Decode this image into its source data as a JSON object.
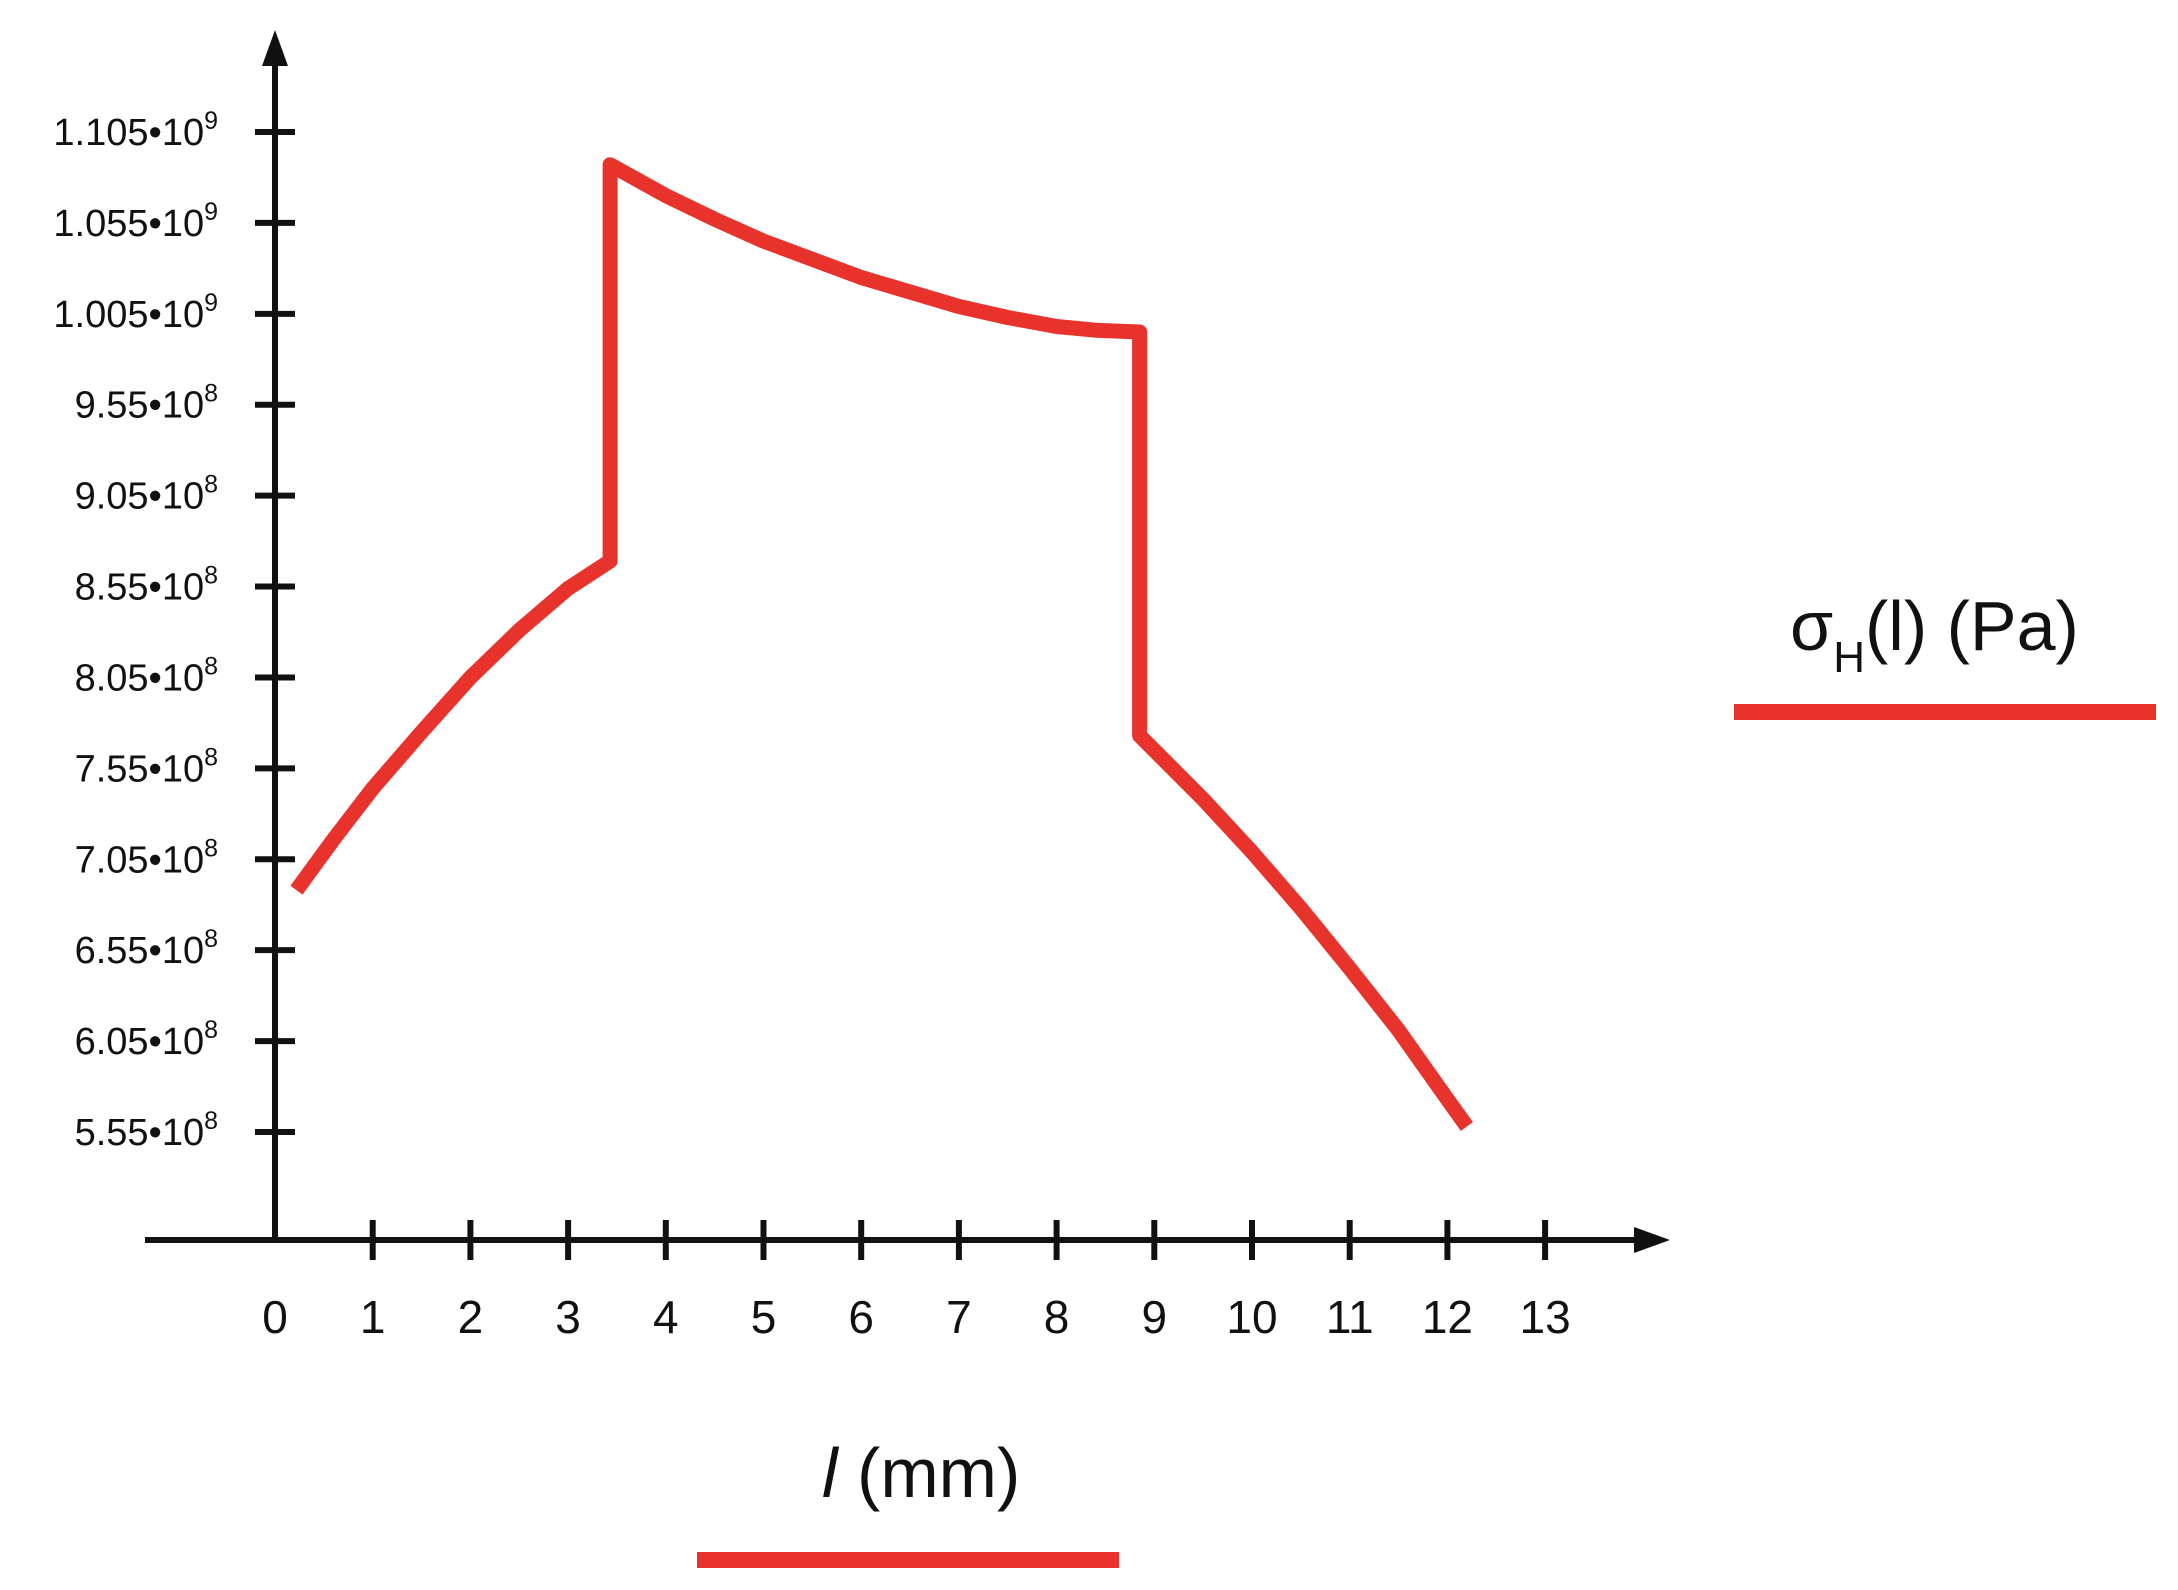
{
  "chart_data": {
    "type": "line",
    "title": "",
    "xlabel": "l (mm)",
    "ylabel": "σH(l) (Pa)",
    "ylabel_parts": {
      "symbol": "σ",
      "subscript": "H",
      "rest": "(l) (Pa)"
    },
    "xlabel_parts": {
      "symbol": "l",
      "rest": " (mm)"
    },
    "x_ticks": [
      0,
      1,
      2,
      3,
      4,
      5,
      6,
      7,
      8,
      9,
      10,
      11,
      12,
      13
    ],
    "x_tick_labels": [
      "0",
      "1",
      "2",
      "3",
      "4",
      "5",
      "6",
      "7",
      "8",
      "9",
      "10",
      "11",
      "12",
      "13"
    ],
    "y_ticks": [
      555000000,
      605000000,
      655000000,
      705000000,
      755000000,
      805000000,
      855000000,
      905000000,
      955000000,
      1005000000,
      1055000000,
      1105000000
    ],
    "y_tick_labels": [
      {
        "mantissa": "5.55",
        "exponent": "8"
      },
      {
        "mantissa": "6.05",
        "exponent": "8"
      },
      {
        "mantissa": "6.55",
        "exponent": "8"
      },
      {
        "mantissa": "7.05",
        "exponent": "8"
      },
      {
        "mantissa": "7.55",
        "exponent": "8"
      },
      {
        "mantissa": "8.05",
        "exponent": "8"
      },
      {
        "mantissa": "8.55",
        "exponent": "8"
      },
      {
        "mantissa": "9.05",
        "exponent": "8"
      },
      {
        "mantissa": "9.55",
        "exponent": "8"
      },
      {
        "mantissa": "1.005",
        "exponent": "9"
      },
      {
        "mantissa": "1.055",
        "exponent": "9"
      },
      {
        "mantissa": "1.105",
        "exponent": "9"
      }
    ],
    "xlim": [
      0,
      13.5
    ],
    "ylim": [
      513000000,
      1160000000
    ],
    "grid": false,
    "legend": "none",
    "series": [
      {
        "name": "σH(l) (Pa)",
        "color": "#e8332d",
        "points": [
          [
            0.22,
            688000000
          ],
          [
            0.6,
            716000000
          ],
          [
            1.0,
            744000000
          ],
          [
            1.5,
            775000000
          ],
          [
            2.0,
            805000000
          ],
          [
            2.5,
            831000000
          ],
          [
            3.0,
            854000000
          ],
          [
            3.43,
            869000000
          ],
          [
            3.43,
            1087000000
          ],
          [
            4.0,
            1070000000
          ],
          [
            4.5,
            1057000000
          ],
          [
            5.0,
            1045000000
          ],
          [
            5.5,
            1035000000
          ],
          [
            6.0,
            1025000000
          ],
          [
            6.5,
            1017000000
          ],
          [
            7.0,
            1009000000
          ],
          [
            7.5,
            1003000000
          ],
          [
            8.0,
            998000000
          ],
          [
            8.4,
            996000000
          ],
          [
            8.85,
            995000000
          ],
          [
            8.85,
            773000000
          ],
          [
            9.5,
            738000000
          ],
          [
            10.0,
            709000000
          ],
          [
            10.5,
            678000000
          ],
          [
            11.0,
            645000000
          ],
          [
            11.5,
            611000000
          ],
          [
            12.0,
            573000000
          ],
          [
            12.2,
            558000000
          ]
        ]
      }
    ]
  }
}
